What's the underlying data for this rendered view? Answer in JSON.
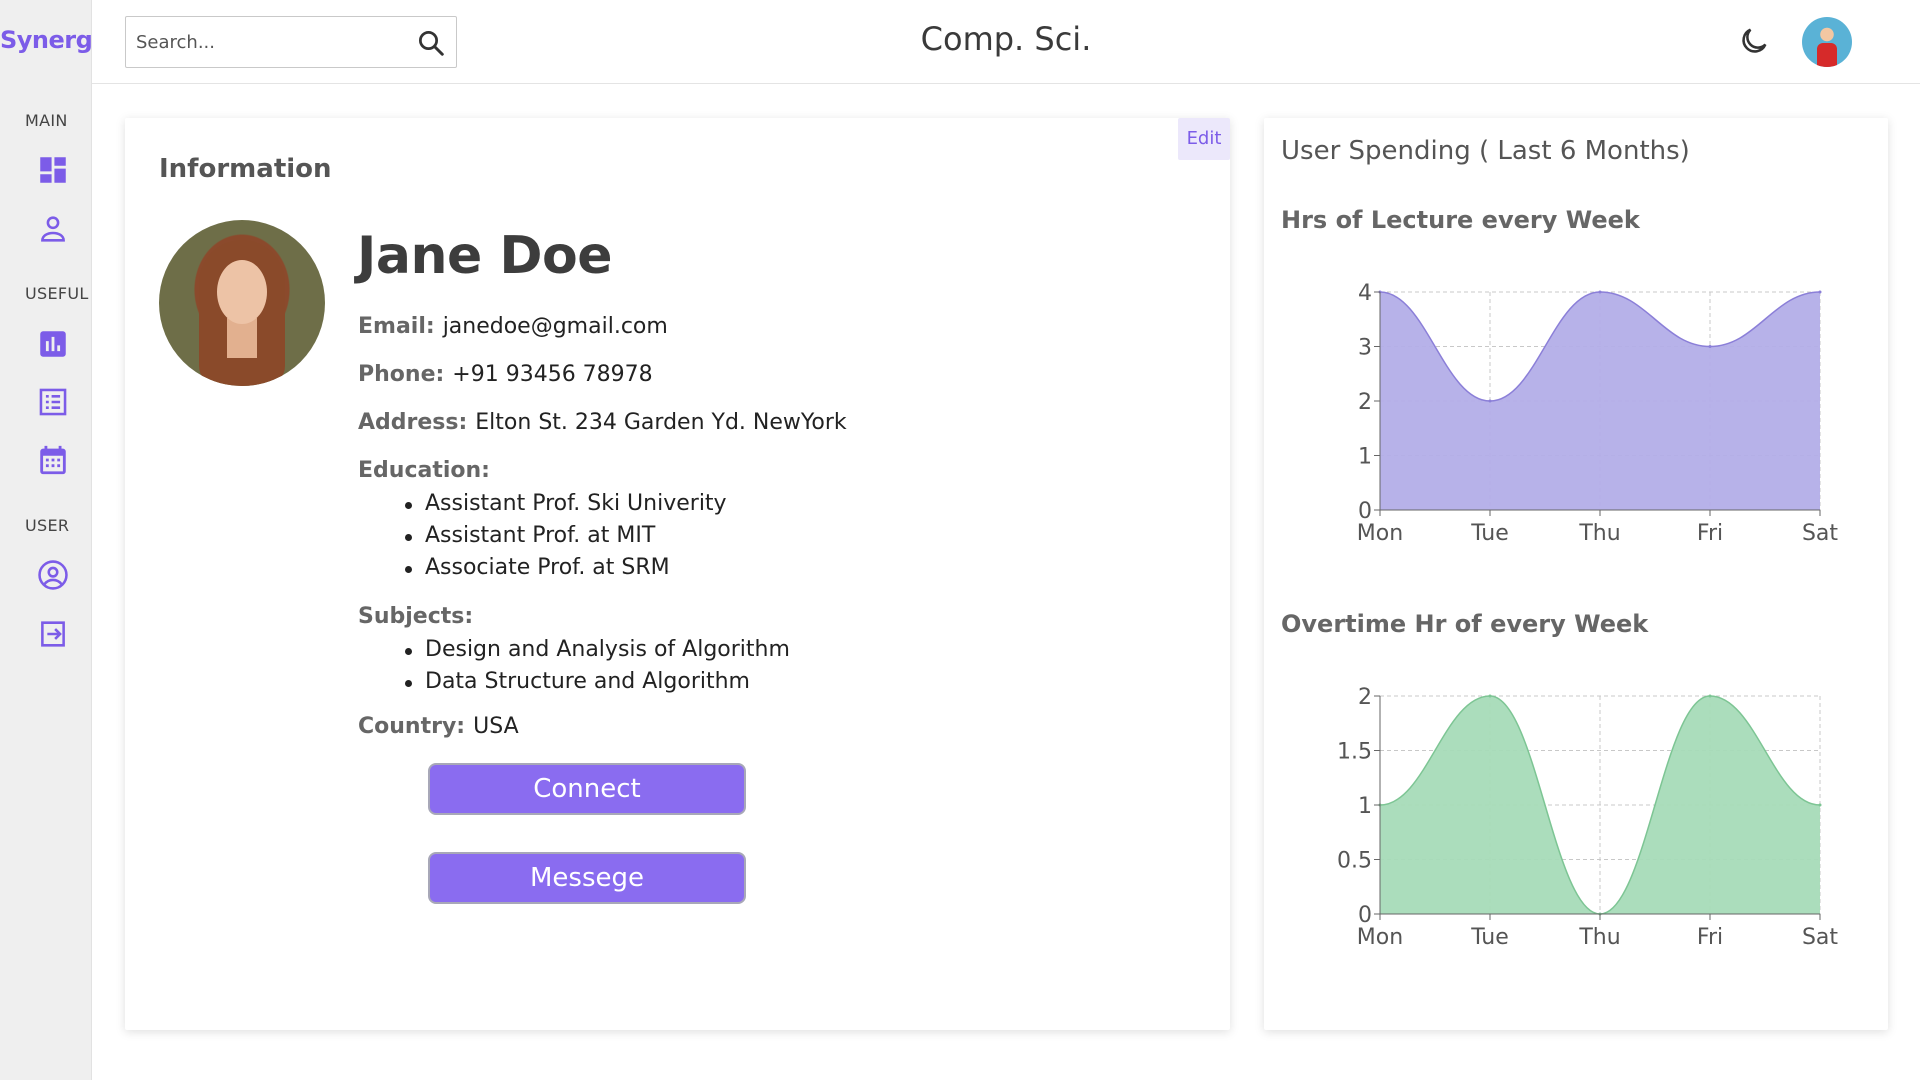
{
  "app": {
    "logo": "Synergy",
    "title": "Comp. Sci."
  },
  "sidebar": {
    "sections": [
      {
        "label": "MAIN",
        "items": [
          "dashboard-icon",
          "user-icon"
        ]
      },
      {
        "label": "USEFUL",
        "items": [
          "bar-chart-icon",
          "list-icon",
          "calendar-icon"
        ]
      },
      {
        "label": "USER",
        "items": [
          "account-circle-icon",
          "logout-icon"
        ]
      }
    ]
  },
  "search": {
    "placeholder": "Search..."
  },
  "colors": {
    "accent": "#7c5ce8",
    "lecture_fill": "#b3aee8",
    "lecture_line": "#8b7fd8",
    "overtime_fill": "#a6dbb8",
    "overtime_line": "#7dc594"
  },
  "profile": {
    "section_title": "Information",
    "edit_label": "Edit",
    "name": "Jane Doe",
    "email_label": "Email:",
    "email": "janedoe@gmail.com",
    "phone_label": "Phone:",
    "phone": "+91 93456 78978",
    "address_label": "Address:",
    "address": "Elton St. 234 Garden Yd. NewYork",
    "education_label": "Education:",
    "education": [
      "Assistant Prof. Ski Univerity",
      "Assistant Prof. at MIT",
      "Associate Prof. at SRM"
    ],
    "subjects_label": "Subjects:",
    "subjects": [
      "Design and Analysis of Algorithm",
      "Data Structure and Algorithm"
    ],
    "country_label": "Country:",
    "country": "USA",
    "connect_label": "Connect",
    "message_label": "Messege"
  },
  "spending": {
    "title": "User Spending ( Last 6 Months)"
  },
  "chart_data": [
    {
      "type": "area",
      "title": "Hrs of Lecture every Week",
      "categories": [
        "Mon",
        "Tue",
        "Thu",
        "Fri",
        "Sat"
      ],
      "series": [
        {
          "values": [
            4,
            2,
            4,
            3,
            4
          ]
        }
      ],
      "ylim": [
        0,
        4
      ],
      "yticks": [
        "0",
        "1",
        "2",
        "3",
        "4"
      ],
      "grid": true
    },
    {
      "type": "area",
      "title": "Overtime Hr of every Week",
      "categories": [
        "Mon",
        "Tue",
        "Thu",
        "Fri",
        "Sat"
      ],
      "series": [
        {
          "values": [
            1,
            2,
            0,
            2,
            1
          ]
        }
      ],
      "ylim": [
        0,
        2
      ],
      "yticks": [
        "0",
        "0.5",
        "1",
        "1.5",
        "2"
      ],
      "grid": true
    }
  ]
}
